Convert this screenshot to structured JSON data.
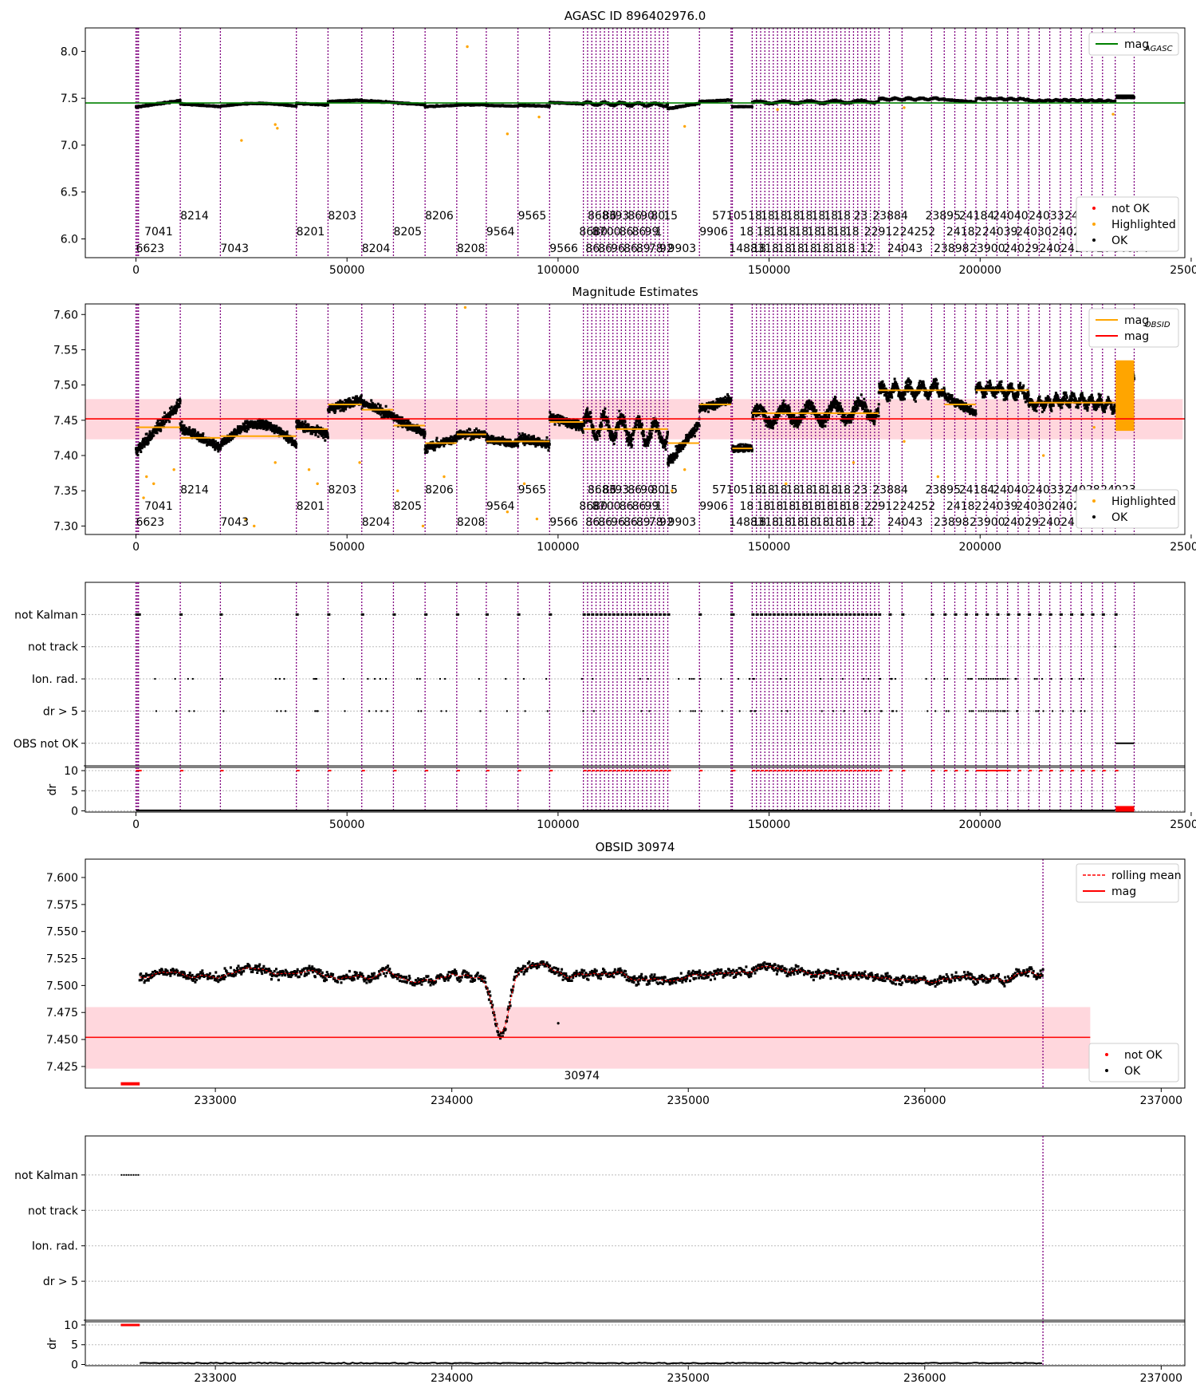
{
  "figure": {
    "background": "#ffffff"
  },
  "colors": {
    "ok": "#000000",
    "not_ok": "#ff0000",
    "highlight": "#ffa500",
    "mag_agasc": "#008000",
    "mag": "#ff0000",
    "mag_band": "#ffb6c1",
    "obs_line": "#800080",
    "obs_line_dot": "#0000ff",
    "grid": "#bbbbbb"
  },
  "chart_data": [
    {
      "id": "p1",
      "type": "scatter",
      "title": "AGASC ID 896402976.0",
      "xlim": [
        -12000,
        248500
      ],
      "ylim": [
        5.8,
        8.25
      ],
      "xticks": [
        0,
        50000,
        100000,
        150000,
        200000,
        250000
      ],
      "xtick_labels": [
        "0",
        "50000",
        "100000",
        "150000",
        "200000",
        "250000"
      ],
      "yticks": [
        6.0,
        6.5,
        7.0,
        7.5,
        8.0
      ],
      "ytick_labels": [
        "6.0",
        "6.5",
        "7.0",
        "7.5",
        "8.0"
      ],
      "legends": [
        {
          "position": "top-right",
          "entries": [
            {
              "kind": "line",
              "color": "#008000",
              "label": "mag",
              "sub": "AGASC"
            }
          ]
        },
        {
          "position": "lower-right",
          "entries": [
            {
              "kind": "dot",
              "color": "#ff0000",
              "label": "not OK"
            },
            {
              "kind": "dot",
              "color": "#ffa500",
              "label": "Highlighted"
            },
            {
              "kind": "dot",
              "color": "#000000",
              "label": "OK"
            }
          ]
        }
      ],
      "hlines": [
        {
          "y": 7.45,
          "x0": -12000,
          "x1": 250000,
          "color": "#008000"
        }
      ],
      "band": null,
      "obsid_label_rows": [
        6.25,
        6.08,
        5.9
      ],
      "series": "main_mag",
      "outliers": [
        [
          25000,
          7.05
        ],
        [
          33000,
          7.22
        ],
        [
          33500,
          7.18
        ],
        [
          88000,
          7.12
        ],
        [
          95500,
          7.3
        ],
        [
          78500,
          8.05
        ],
        [
          130000,
          7.2
        ],
        [
          231500,
          7.33
        ],
        [
          152000,
          7.38
        ],
        [
          182000,
          7.4
        ]
      ]
    },
    {
      "id": "p2",
      "type": "scatter",
      "title": "Magnitude Estimates",
      "xlim": [
        -12000,
        248500
      ],
      "ylim": [
        7.288,
        7.615
      ],
      "xticks": [
        0,
        50000,
        100000,
        150000,
        200000,
        250000
      ],
      "xtick_labels": [
        "0",
        "50000",
        "100000",
        "150000",
        "200000",
        "250000"
      ],
      "yticks": [
        7.3,
        7.35,
        7.4,
        7.45,
        7.5,
        7.55,
        7.6
      ],
      "ytick_labels": [
        "7.30",
        "7.35",
        "7.40",
        "7.45",
        "7.50",
        "7.55",
        "7.60"
      ],
      "legends": [
        {
          "position": "top-right",
          "entries": [
            {
              "kind": "line",
              "color": "#ffa500",
              "label": "mag",
              "sub": "OBSID"
            },
            {
              "kind": "line",
              "color": "#ff0000",
              "label": "mag"
            }
          ]
        },
        {
          "position": "lower-right",
          "entries": [
            {
              "kind": "dot",
              "color": "#ffa500",
              "label": "Highlighted"
            },
            {
              "kind": "dot",
              "color": "#000000",
              "label": "OK"
            }
          ]
        }
      ],
      "hlines": [
        {
          "y": 7.452,
          "x0": -12000,
          "x1": 250000,
          "color": "#ff0000"
        }
      ],
      "band": {
        "y0": 7.423,
        "y1": 7.48
      },
      "obsid_label_rows": [
        7.352,
        7.329,
        7.306
      ],
      "series": "main_mag",
      "outliers": [
        [
          1800,
          7.34
        ],
        [
          2500,
          7.37
        ],
        [
          4200,
          7.36
        ],
        [
          9000,
          7.38
        ],
        [
          26000,
          7.31
        ],
        [
          28000,
          7.3
        ],
        [
          33000,
          7.39
        ],
        [
          41000,
          7.38
        ],
        [
          43000,
          7.36
        ],
        [
          53000,
          7.39
        ],
        [
          62000,
          7.35
        ],
        [
          68000,
          7.3
        ],
        [
          73000,
          7.37
        ],
        [
          78000,
          7.61
        ],
        [
          88000,
          7.32
        ],
        [
          92000,
          7.36
        ],
        [
          95000,
          7.31
        ],
        [
          127000,
          7.35
        ],
        [
          130000,
          7.38
        ],
        [
          154000,
          7.36
        ],
        [
          170000,
          7.39
        ],
        [
          182000,
          7.42
        ],
        [
          190000,
          7.37
        ],
        [
          215000,
          7.4
        ],
        [
          227000,
          7.44
        ]
      ]
    },
    {
      "id": "p3",
      "type": "scatter",
      "title": "",
      "xlim": [
        -12000,
        248500
      ],
      "xticks": [
        0,
        50000,
        100000,
        150000,
        200000,
        250000
      ],
      "xtick_labels": [
        "0",
        "50000",
        "100000",
        "150000",
        "200000",
        "250000"
      ],
      "flag_rows": [
        "not Kalman",
        "not track",
        "Ion. rad.",
        "dr > 5",
        "OBS not OK"
      ],
      "dr_ylim": [
        -0.3,
        10.8
      ],
      "dr_ylabel": "dr",
      "dr_yticks": [
        0,
        5,
        10
      ],
      "dr_ytick_labels": [
        "0",
        "5",
        "10"
      ]
    },
    {
      "id": "p4",
      "type": "line",
      "title": "OBSID 30974",
      "xlim": [
        232450,
        237100
      ],
      "ylim": [
        7.405,
        7.617
      ],
      "xticks": [
        233000,
        234000,
        235000,
        236000,
        237000
      ],
      "xtick_labels": [
        "233000",
        "234000",
        "235000",
        "236000",
        "237000"
      ],
      "yticks": [
        7.425,
        7.45,
        7.475,
        7.5,
        7.525,
        7.55,
        7.575,
        7.6
      ],
      "ytick_labels": [
        "7.425",
        "7.450",
        "7.475",
        "7.500",
        "7.525",
        "7.550",
        "7.575",
        "7.600"
      ],
      "legends": [
        {
          "position": "top-right",
          "entries": [
            {
              "kind": "dash",
              "color": "#ff0000",
              "label": "rolling mean"
            },
            {
              "kind": "line",
              "color": "#ff0000",
              "label": "mag"
            }
          ]
        },
        {
          "position": "lower-right",
          "entries": [
            {
              "kind": "dot",
              "color": "#ff0000",
              "label": "not OK"
            },
            {
              "kind": "dot",
              "color": "#000000",
              "label": "OK"
            }
          ]
        }
      ],
      "hlines": [
        {
          "y": 7.452,
          "x0": 232450,
          "x1": 236700,
          "color": "#ff0000"
        }
      ],
      "band": {
        "y0": 7.423,
        "y1": 7.48,
        "x1": 236700
      },
      "obs_lines": [
        232600,
        236500
      ],
      "obsid_label": {
        "text": "30974",
        "x": 234550,
        "y": 7.417
      },
      "not_ok_run": {
        "x0": 232600,
        "x1": 232680,
        "y": 7.409
      },
      "series": "obsid_mag"
    },
    {
      "id": "p5",
      "type": "scatter",
      "title": "",
      "xlim": [
        232450,
        237100
      ],
      "xticks": [
        233000,
        234000,
        235000,
        236000,
        237000
      ],
      "xtick_labels": [
        "233000",
        "234000",
        "235000",
        "236000",
        "237000"
      ],
      "flag_rows": [
        "not Kalman",
        "not track",
        "Ion. rad.",
        "dr > 5"
      ],
      "dr_ylim": [
        -0.3,
        10.8
      ],
      "dr_ylabel": "dr",
      "dr_yticks": [
        0,
        5,
        10
      ],
      "dr_ytick_labels": [
        "0",
        "5",
        "10"
      ]
    }
  ],
  "obsids": [
    {
      "label": "6623",
      "x": 0,
      "row": 2
    },
    {
      "label": "7041",
      "x": 2000,
      "row": 1
    },
    {
      "label": "8214",
      "x": 10500,
      "row": 0
    },
    {
      "label": "7043",
      "x": 20000,
      "row": 2
    },
    {
      "label": "8201",
      "x": 38000,
      "row": 1
    },
    {
      "label": "8203",
      "x": 45500,
      "row": 0
    },
    {
      "label": "8204",
      "x": 53500,
      "row": 2
    },
    {
      "label": "8205",
      "x": 61000,
      "row": 1
    },
    {
      "label": "8206",
      "x": 68500,
      "row": 0
    },
    {
      "label": "8208",
      "x": 76000,
      "row": 2
    },
    {
      "label": "9564",
      "x": 83000,
      "row": 1
    },
    {
      "label": "9565",
      "x": 90500,
      "row": 0
    },
    {
      "label": "9566",
      "x": 98000,
      "row": 2
    },
    {
      "label": "8680",
      "x": 105000,
      "row": 1
    },
    {
      "label": "86",
      "x": 106500,
      "row": 2
    },
    {
      "label": "8683",
      "x": 107000,
      "row": 0
    },
    {
      "label": "87",
      "x": 108000,
      "row": 1
    },
    {
      "label": "86",
      "x": 109500,
      "row": 2
    },
    {
      "label": "86",
      "x": 110500,
      "row": 0
    },
    {
      "label": "00",
      "x": 111500,
      "row": 1
    },
    {
      "label": "96",
      "x": 112500,
      "row": 2
    },
    {
      "label": "93",
      "x": 113500,
      "row": 0
    },
    {
      "label": "86",
      "x": 114500,
      "row": 1
    },
    {
      "label": "86",
      "x": 115500,
      "row": 2
    },
    {
      "label": "86",
      "x": 116500,
      "row": 0
    },
    {
      "label": "86",
      "x": 117500,
      "row": 1
    },
    {
      "label": "89",
      "x": 118500,
      "row": 2
    },
    {
      "label": "90",
      "x": 119500,
      "row": 0
    },
    {
      "label": "99",
      "x": 120500,
      "row": 1
    },
    {
      "label": "78",
      "x": 121500,
      "row": 2
    },
    {
      "label": "80",
      "x": 122000,
      "row": 0
    },
    {
      "label": "1",
      "x": 123000,
      "row": 1
    },
    {
      "label": "92",
      "x": 124000,
      "row": 2
    },
    {
      "label": "15",
      "x": 125000,
      "row": 0
    },
    {
      "label": "9903",
      "x": 126000,
      "row": 2
    },
    {
      "label": "9906",
      "x": 133500,
      "row": 1
    },
    {
      "label": "57105",
      "x": 136500,
      "row": 0
    },
    {
      "label": "14883",
      "x": 140500,
      "row": 2
    },
    {
      "label": "18",
      "x": 143000,
      "row": 1
    },
    {
      "label": "18",
      "x": 145000,
      "row": 0
    },
    {
      "label": "18",
      "x": 146000,
      "row": 2
    },
    {
      "label": "18",
      "x": 147000,
      "row": 1
    },
    {
      "label": "18",
      "x": 148000,
      "row": 0
    },
    {
      "label": "18",
      "x": 149000,
      "row": 2
    },
    {
      "label": "18",
      "x": 150000,
      "row": 1
    },
    {
      "label": "18",
      "x": 151000,
      "row": 0
    },
    {
      "label": "18",
      "x": 152000,
      "row": 2
    },
    {
      "label": "18",
      "x": 153000,
      "row": 1
    },
    {
      "label": "18",
      "x": 154000,
      "row": 0
    },
    {
      "label": "18",
      "x": 155000,
      "row": 2
    },
    {
      "label": "18",
      "x": 156000,
      "row": 1
    },
    {
      "label": "18",
      "x": 157000,
      "row": 0
    },
    {
      "label": "18",
      "x": 158000,
      "row": 2
    },
    {
      "label": "18",
      "x": 159000,
      "row": 1
    },
    {
      "label": "18",
      "x": 160000,
      "row": 0
    },
    {
      "label": "18",
      "x": 161000,
      "row": 2
    },
    {
      "label": "18",
      "x": 162000,
      "row": 1
    },
    {
      "label": "18",
      "x": 163000,
      "row": 0
    },
    {
      "label": "18",
      "x": 164000,
      "row": 2
    },
    {
      "label": "18",
      "x": 165000,
      "row": 1
    },
    {
      "label": "18",
      "x": 166000,
      "row": 0
    },
    {
      "label": "18",
      "x": 167000,
      "row": 2
    },
    {
      "label": "18",
      "x": 168000,
      "row": 1
    },
    {
      "label": "23",
      "x": 170000,
      "row": 0
    },
    {
      "label": "12",
      "x": 171500,
      "row": 2
    },
    {
      "label": "22912",
      "x": 172500,
      "row": 1
    },
    {
      "label": "23884",
      "x": 174500,
      "row": 0
    },
    {
      "label": "24043",
      "x": 178000,
      "row": 2
    },
    {
      "label": "24252",
      "x": 181000,
      "row": 1
    },
    {
      "label": "23895",
      "x": 187000,
      "row": 0
    },
    {
      "label": "23898",
      "x": 189000,
      "row": 2
    },
    {
      "label": "24182",
      "x": 192000,
      "row": 1
    },
    {
      "label": "24184",
      "x": 195000,
      "row": 0
    },
    {
      "label": "23900",
      "x": 197500,
      "row": 2
    },
    {
      "label": "24039",
      "x": 200500,
      "row": 1
    },
    {
      "label": "24040",
      "x": 203000,
      "row": 0
    },
    {
      "label": "24029",
      "x": 205500,
      "row": 2
    },
    {
      "label": "24030",
      "x": 208500,
      "row": 1
    },
    {
      "label": "24033",
      "x": 211500,
      "row": 0
    },
    {
      "label": "24024",
      "x": 214000,
      "row": 2
    },
    {
      "label": "24025",
      "x": 217000,
      "row": 1
    },
    {
      "label": "24028",
      "x": 220000,
      "row": 0
    },
    {
      "label": "24020",
      "x": 222500,
      "row": 2
    },
    {
      "label": "24022",
      "x": 225500,
      "row": 1
    },
    {
      "label": "24023",
      "x": 228500,
      "row": 0
    },
    {
      "label": "30974",
      "x": 231500,
      "row": 2
    }
  ],
  "obs_line_starts": [
    0,
    300,
    600,
    10500,
    20000,
    38000,
    45500,
    53500,
    61000,
    68500,
    76000,
    83000,
    90500,
    98000,
    106000,
    107000,
    108000,
    109000,
    110000,
    111000,
    112000,
    113000,
    114000,
    115000,
    116000,
    117000,
    118000,
    119000,
    120000,
    121000,
    122000,
    123000,
    124000,
    125000,
    126000,
    133500,
    141000,
    141300,
    146000,
    147000,
    148000,
    149000,
    150000,
    151000,
    152000,
    153000,
    154000,
    155000,
    156000,
    157000,
    158000,
    159000,
    160000,
    161000,
    162000,
    163000,
    164000,
    165000,
    166000,
    167000,
    168000,
    169000,
    170000,
    171000,
    172000,
    173000,
    174000,
    175000,
    176000,
    178500,
    181500,
    188500,
    191500,
    194000,
    196500,
    199000,
    201500,
    204000,
    206500,
    209000,
    211500,
    214000,
    216500,
    219000,
    221500,
    224000,
    226500,
    229000,
    232000,
    236500
  ],
  "main_mag_segments": [
    {
      "x0": 0,
      "x1": 10500,
      "m0": 7.405,
      "m1": 7.475,
      "sp": 0.018
    },
    {
      "x0": 10500,
      "x1": 20000,
      "m0": 7.44,
      "m1": 7.41,
      "sp": 0.015
    },
    {
      "x0": 20000,
      "x1": 38000,
      "m0": 7.425,
      "m1": 7.43,
      "sp": 0.014,
      "bump": [
        7.415,
        7.445
      ]
    },
    {
      "x0": 38000,
      "x1": 45500,
      "m0": 7.445,
      "m1": 7.43,
      "sp": 0.015
    },
    {
      "x0": 45500,
      "x1": 53500,
      "m0": 7.465,
      "m1": 7.48,
      "sp": 0.015
    },
    {
      "x0": 53500,
      "x1": 61000,
      "m0": 7.475,
      "m1": 7.455,
      "sp": 0.015
    },
    {
      "x0": 61000,
      "x1": 68500,
      "m0": 7.455,
      "m1": 7.43,
      "sp": 0.015
    },
    {
      "x0": 68500,
      "x1": 76000,
      "m0": 7.41,
      "m1": 7.425,
      "sp": 0.014
    },
    {
      "x0": 76000,
      "x1": 83000,
      "m0": 7.43,
      "m1": 7.43,
      "sp": 0.014
    },
    {
      "x0": 83000,
      "x1": 90500,
      "m0": 7.425,
      "m1": 7.415,
      "sp": 0.014
    },
    {
      "x0": 90500,
      "x1": 98000,
      "m0": 7.425,
      "m1": 7.415,
      "sp": 0.014
    },
    {
      "x0": 98000,
      "x1": 106000,
      "m0": 7.455,
      "m1": 7.44,
      "sp": 0.015
    },
    {
      "x0": 106000,
      "x1": 126000,
      "m0": 7.445,
      "m1": 7.43,
      "sp": 0.022,
      "wiggle": 0.015
    },
    {
      "x0": 126000,
      "x1": 133500,
      "m0": 7.39,
      "m1": 7.445,
      "sp": 0.016
    },
    {
      "x0": 133500,
      "x1": 141000,
      "m0": 7.465,
      "m1": 7.48,
      "sp": 0.014
    },
    {
      "x0": 141300,
      "x1": 146000,
      "m0": 7.41,
      "m1": 7.41,
      "sp": 0.012
    },
    {
      "x0": 146000,
      "x1": 176000,
      "m0": 7.455,
      "m1": 7.465,
      "sp": 0.02,
      "wiggle": 0.012
    },
    {
      "x0": 176000,
      "x1": 191500,
      "m0": 7.49,
      "m1": 7.495,
      "sp": 0.018,
      "wiggle": 0.008
    },
    {
      "x0": 191500,
      "x1": 199000,
      "m0": 7.485,
      "m1": 7.46,
      "sp": 0.015
    },
    {
      "x0": 199000,
      "x1": 211500,
      "m0": 7.495,
      "m1": 7.49,
      "sp": 0.017,
      "wiggle": 0.006
    },
    {
      "x0": 211500,
      "x1": 221500,
      "m0": 7.47,
      "m1": 7.48,
      "sp": 0.016,
      "wiggle": 0.006
    },
    {
      "x0": 221500,
      "x1": 232000,
      "m0": 7.48,
      "m1": 7.47,
      "sp": 0.016,
      "wiggle": 0.006
    },
    {
      "x0": 232600,
      "x1": 236500,
      "m0": 7.51,
      "m1": 7.51,
      "sp": 0.015
    }
  ]
}
